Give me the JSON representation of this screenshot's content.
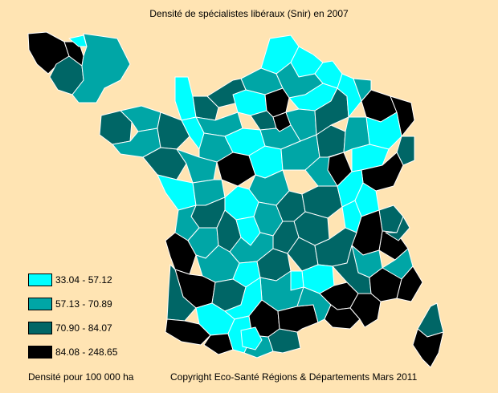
{
  "title": "Densité de spécialistes libéraux (Snir) en 2007",
  "legend": {
    "items": [
      {
        "label": "33.04 - 57.12",
        "color": "#00ffff"
      },
      {
        "label": "57.13 - 70.89",
        "color": "#00a6a6"
      },
      {
        "label": "70.90 - 84.07",
        "color": "#006666"
      },
      {
        "label": "84.08 - 248.65",
        "color": "#000000"
      }
    ]
  },
  "footer": {
    "unit": "Densité pour 100 000 ha",
    "copyright": "Copyright Eco-Santé Régions & Départements Mars 2011"
  },
  "colors": {
    "background": "#ffe4b3",
    "border": "#ffffff"
  }
}
